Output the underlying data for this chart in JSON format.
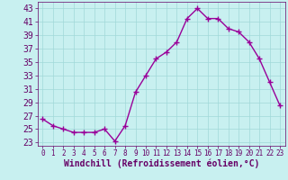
{
  "x": [
    0,
    1,
    2,
    3,
    4,
    5,
    6,
    7,
    8,
    9,
    10,
    11,
    12,
    13,
    14,
    15,
    16,
    17,
    18,
    19,
    20,
    21,
    22,
    23
  ],
  "y": [
    26.5,
    25.5,
    25.0,
    24.5,
    24.5,
    24.5,
    25.0,
    23.2,
    25.5,
    30.5,
    33.0,
    35.5,
    36.5,
    38.0,
    41.5,
    43.0,
    41.5,
    41.5,
    40.0,
    39.5,
    38.0,
    35.5,
    32.0,
    28.5
  ],
  "line_color": "#990099",
  "marker": "+",
  "marker_size": 4,
  "bg_color": "#c8f0f0",
  "grid_color": "#a0d8d8",
  "xlabel": "Windchill (Refroidissement éolien,°C)",
  "ylabel": "",
  "xlim": [
    -0.5,
    23.5
  ],
  "ylim": [
    22.5,
    44.0
  ],
  "yticks": [
    23,
    25,
    27,
    29,
    31,
    33,
    35,
    37,
    39,
    41,
    43
  ],
  "xticks": [
    0,
    1,
    2,
    3,
    4,
    5,
    6,
    7,
    8,
    9,
    10,
    11,
    12,
    13,
    14,
    15,
    16,
    17,
    18,
    19,
    20,
    21,
    22,
    23
  ],
  "axis_color": "#660066",
  "tick_color": "#660066",
  "xlabel_color": "#660066",
  "xlabel_fontsize": 7,
  "ytick_fontsize": 7,
  "xtick_fontsize": 5.5,
  "linewidth": 1.0,
  "marker_linewidth": 1.0
}
